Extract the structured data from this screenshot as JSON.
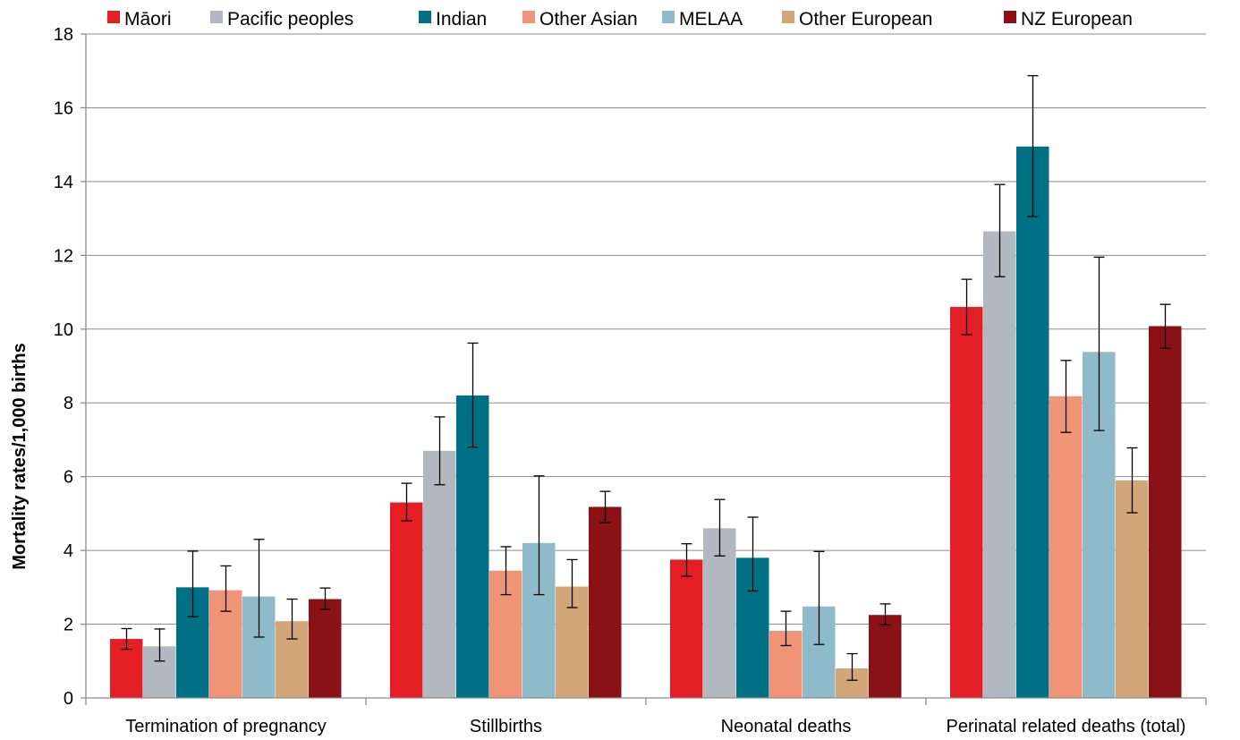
{
  "chart_data": {
    "type": "bar",
    "title": "",
    "xlabel": "",
    "ylabel": "Mortality rates/1,000 births",
    "ylim": [
      0,
      18
    ],
    "yticks": [
      0,
      2,
      4,
      6,
      8,
      10,
      12,
      14,
      16,
      18
    ],
    "grid": true,
    "legend_position": "top",
    "categories": [
      "Termination of pregnancy",
      "Stillbirths",
      "Neonatal deaths",
      "Perinatal related deaths (total)"
    ],
    "series": [
      {
        "name": "Māori",
        "color": "#e31e25",
        "values": [
          1.6,
          5.3,
          3.75,
          10.6
        ],
        "err_low": [
          1.32,
          4.8,
          3.3,
          9.85
        ],
        "err_high": [
          1.88,
          5.82,
          4.18,
          11.35
        ]
      },
      {
        "name": "Pacific peoples",
        "color": "#b2b8bf",
        "values": [
          1.4,
          6.7,
          4.6,
          12.65
        ],
        "err_low": [
          1.0,
          5.78,
          3.85,
          11.42
        ],
        "err_high": [
          1.87,
          7.62,
          5.38,
          13.92
        ]
      },
      {
        "name": "Indian",
        "color": "#007185",
        "values": [
          3.0,
          8.2,
          3.8,
          14.95
        ],
        "err_low": [
          2.2,
          6.8,
          2.9,
          13.05
        ],
        "err_high": [
          3.98,
          9.62,
          4.9,
          16.87
        ]
      },
      {
        "name": "Other Asian",
        "color": "#f09478",
        "values": [
          2.92,
          3.45,
          1.82,
          8.18
        ],
        "err_low": [
          2.35,
          2.8,
          1.42,
          7.2
        ],
        "err_high": [
          3.58,
          4.1,
          2.35,
          9.15
        ]
      },
      {
        "name": "MELAA",
        "color": "#8ebac9",
        "values": [
          2.75,
          4.2,
          2.48,
          9.38
        ],
        "err_low": [
          1.65,
          2.8,
          1.45,
          7.25
        ],
        "err_high": [
          4.3,
          6.02,
          3.97,
          11.95
        ]
      },
      {
        "name": "Other European",
        "color": "#d2a679",
        "values": [
          2.08,
          3.02,
          0.8,
          5.9
        ],
        "err_low": [
          1.6,
          2.45,
          0.48,
          5.02
        ],
        "err_high": [
          2.68,
          3.75,
          1.2,
          6.78
        ]
      },
      {
        "name": "NZ European",
        "color": "#8a1116",
        "values": [
          2.68,
          5.18,
          2.25,
          10.08
        ],
        "err_low": [
          2.4,
          4.75,
          1.98,
          9.48
        ],
        "err_high": [
          2.98,
          5.6,
          2.55,
          10.67
        ]
      }
    ]
  }
}
